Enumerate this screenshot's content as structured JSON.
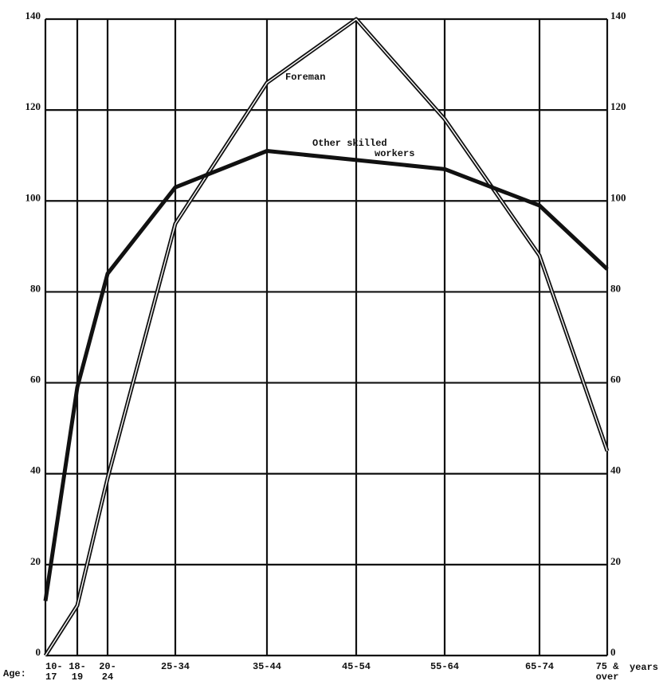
{
  "chart_data": {
    "type": "line",
    "x_prefix": "Age:",
    "x_suffix": "years",
    "categories": [
      "10-\n17",
      "18-\n19",
      "20-\n24",
      "25-34",
      "35-44",
      "45-54",
      "55-64",
      "65-74",
      "75 &\nover"
    ],
    "series": [
      {
        "name": "Foreman",
        "color": "#111111",
        "style": "double",
        "values": [
          0,
          11,
          39,
          95,
          126,
          140,
          118,
          88,
          45
        ]
      },
      {
        "name": "Other skilled\nworkers",
        "color": "#111111",
        "style": "solid",
        "values": [
          12,
          59,
          84,
          103,
          111,
          109,
          107,
          99,
          85
        ]
      }
    ],
    "ylim": [
      0,
      140
    ],
    "yticks": [
      0,
      20,
      40,
      60,
      80,
      100,
      120,
      140
    ],
    "y2lim": [
      0,
      140
    ],
    "y2ticks": [
      0,
      20,
      40,
      60,
      80,
      100,
      120,
      140
    ],
    "grid": true
  }
}
